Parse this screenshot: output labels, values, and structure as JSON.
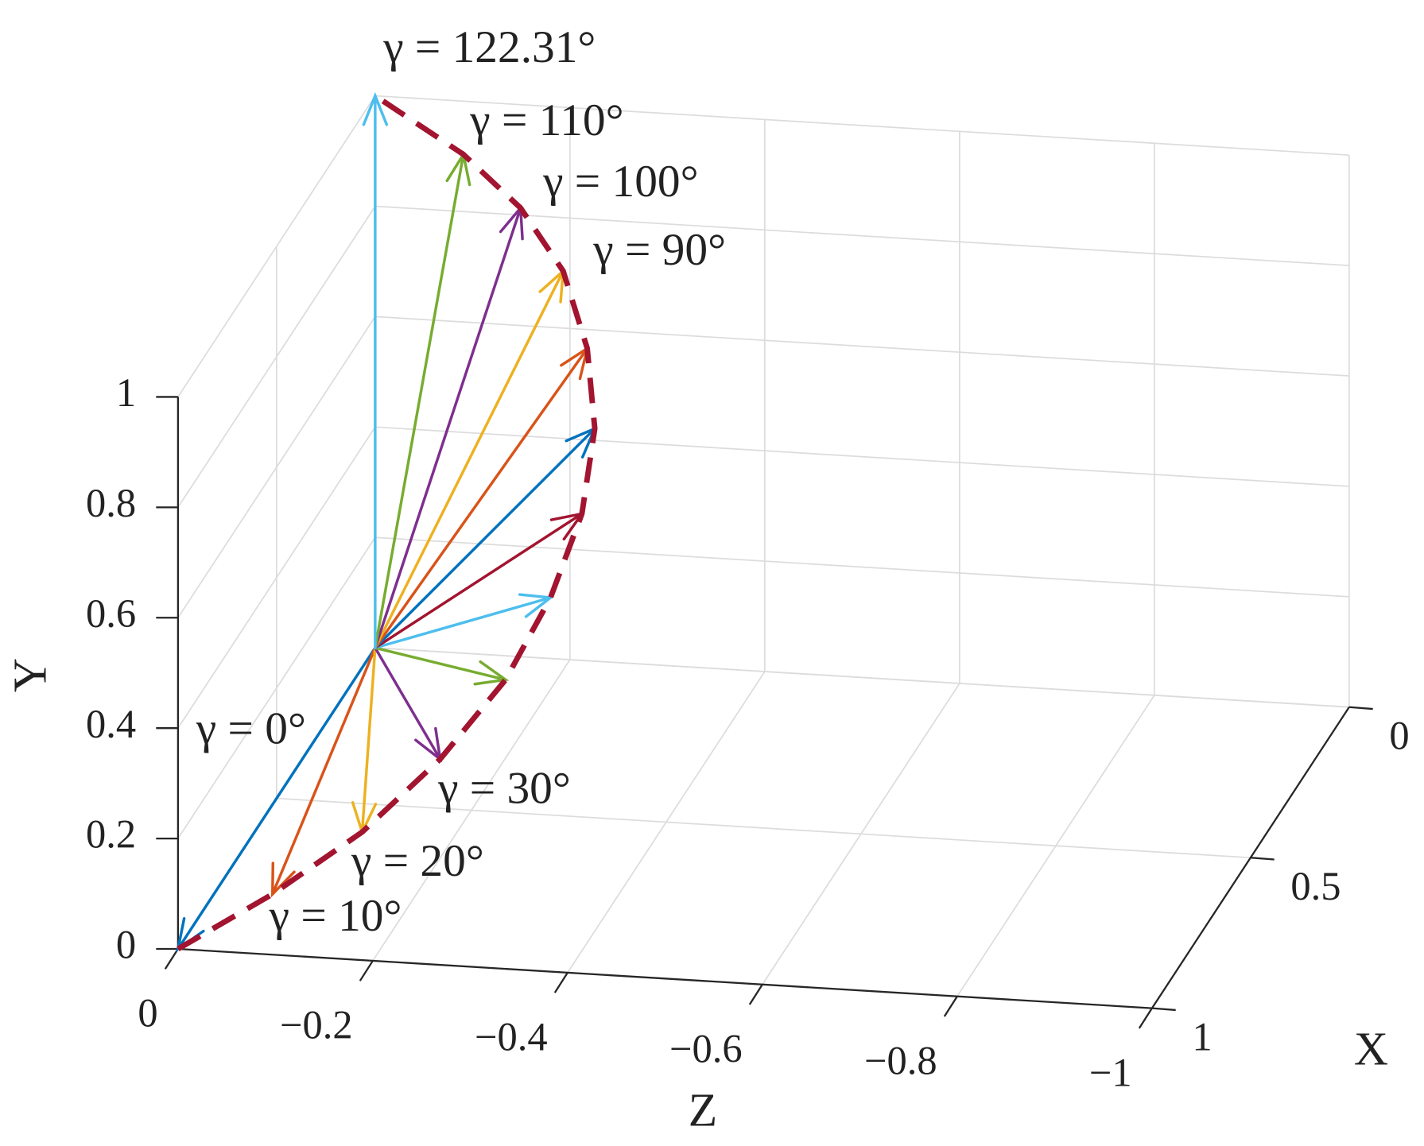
{
  "chart_data": {
    "type": "quiver3",
    "xlabel": "X",
    "ylabel": "Y",
    "zlabel": "Z",
    "xlim": [
      0,
      1
    ],
    "ylim": [
      0,
      1
    ],
    "zlim": [
      -1,
      0
    ],
    "xticks": [
      0,
      0.5,
      1
    ],
    "yticks": [
      0,
      0.2,
      0.4,
      0.6,
      0.8,
      1
    ],
    "zticks": [
      0,
      {
        "value": -0.2,
        "label": "−0.2"
      },
      {
        "value": -0.4,
        "label": "−0.4"
      },
      {
        "value": -0.6,
        "label": "−0.6"
      },
      {
        "value": -0.8,
        "label": "−0.8"
      },
      {
        "value": -1,
        "label": "−1"
      }
    ],
    "grid": true,
    "origin": {
      "x": 0,
      "y": 0,
      "z": 0
    },
    "vectors": [
      {
        "label": "γ = 0°",
        "color": "#0072bd",
        "x": 1,
        "y": 0,
        "z": 0
      },
      {
        "label": "γ = 10°",
        "color": "#d95319",
        "x": 0.99,
        "y": 0.104,
        "z": -0.095
      },
      {
        "label": "γ = 20°",
        "color": "#edb120",
        "x": 0.97,
        "y": 0.215,
        "z": -0.183
      },
      {
        "label": "γ = 30°",
        "color": "#7e2f8e",
        "x": 0.93,
        "y": 0.333,
        "z": -0.255
      },
      {
        "color": "#77ac30",
        "x": 0.87,
        "y": 0.45,
        "z": -0.31
      },
      {
        "color": "#4dbeee",
        "x": 0.8,
        "y": 0.564,
        "z": -0.342
      },
      {
        "color": "#a2142f",
        "x": 0.72,
        "y": 0.674,
        "z": -0.358
      },
      {
        "color": "#0072bd",
        "x": 0.62,
        "y": 0.773,
        "z": -0.351
      },
      {
        "color": "#d95319",
        "x": 0.51,
        "y": 0.855,
        "z": -0.321
      },
      {
        "label": "γ = 90°",
        "color": "#edb120",
        "x": 0.405,
        "y": 0.933,
        "z": -0.275
      },
      {
        "label": "γ = 100°",
        "color": "#7e2f8e",
        "x": 0.3,
        "y": 0.983,
        "z": -0.21
      },
      {
        "label": "γ = 110°",
        "color": "#77ac30",
        "x": 0.17,
        "y": 1.0,
        "z": -0.125
      },
      {
        "label": "γ = 122.31°",
        "color": "#4dbeee",
        "x": 0,
        "y": 1,
        "z": 0
      }
    ],
    "trajectory": {
      "color": "#a2142f",
      "dashed": true
    }
  }
}
